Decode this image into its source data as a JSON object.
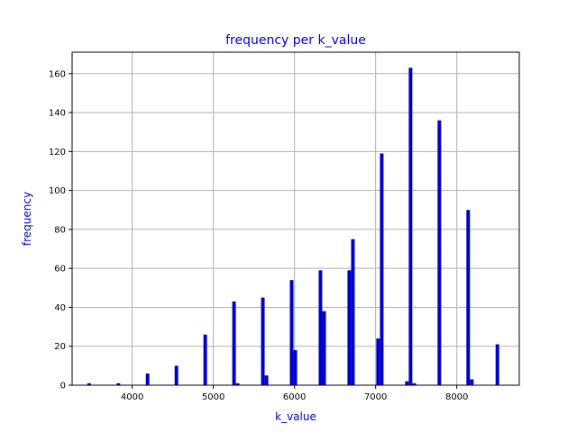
{
  "chart_data": {
    "type": "bar",
    "title": "frequency per k_value",
    "xlabel": "k_value",
    "ylabel": "frequency",
    "xlim": [
      3260,
      8770
    ],
    "ylim": [
      0,
      171
    ],
    "xticks": [
      4000,
      5000,
      6000,
      7000,
      8000
    ],
    "yticks": [
      0,
      20,
      40,
      60,
      80,
      100,
      120,
      140,
      160
    ],
    "grid": true,
    "legend": "none",
    "bin_width": 44,
    "colors": {
      "bars": "#0000cc",
      "text": "#0000cc",
      "grid": "#b0b0b0"
    },
    "bins": [
      {
        "x": 3470,
        "y": 1
      },
      {
        "x": 3830,
        "y": 1
      },
      {
        "x": 4190,
        "y": 6
      },
      {
        "x": 4545,
        "y": 10
      },
      {
        "x": 4900,
        "y": 26
      },
      {
        "x": 5255,
        "y": 43
      },
      {
        "x": 5300,
        "y": 1
      },
      {
        "x": 5610,
        "y": 45
      },
      {
        "x": 5655,
        "y": 5
      },
      {
        "x": 5965,
        "y": 54
      },
      {
        "x": 5965,
        "y": 19
      },
      {
        "x": 6010,
        "y": 18
      },
      {
        "x": 6320,
        "y": 59
      },
      {
        "x": 6320,
        "y": 39
      },
      {
        "x": 6365,
        "y": 38
      },
      {
        "x": 6675,
        "y": 59
      },
      {
        "x": 6720,
        "y": 75
      },
      {
        "x": 7030,
        "y": 24
      },
      {
        "x": 7075,
        "y": 119
      },
      {
        "x": 7385,
        "y": 2
      },
      {
        "x": 7430,
        "y": 163
      },
      {
        "x": 7475,
        "y": 1
      },
      {
        "x": 7785,
        "y": 136
      },
      {
        "x": 8140,
        "y": 90
      },
      {
        "x": 8185,
        "y": 3
      },
      {
        "x": 8500,
        "y": 21
      }
    ]
  }
}
